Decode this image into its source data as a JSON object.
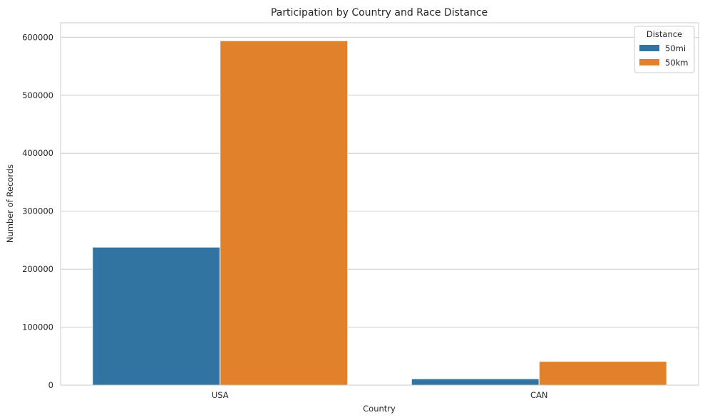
{
  "chart_data": {
    "type": "bar",
    "title": "Participation by Country and Race Distance",
    "xlabel": "Country",
    "ylabel": "Number of Records",
    "categories": [
      "USA",
      "CAN"
    ],
    "series": [
      {
        "name": "50mi",
        "values": [
          238000,
          11000
        ],
        "color": "#3274a1"
      },
      {
        "name": "50km",
        "values": [
          594000,
          41000
        ],
        "color": "#e1812c"
      }
    ],
    "ylim": [
      0,
      625000
    ],
    "yticks": [
      0,
      100000,
      200000,
      300000,
      400000,
      500000,
      600000
    ],
    "ytick_labels": [
      "0",
      "100000",
      "200000",
      "300000",
      "400000",
      "500000",
      "600000"
    ],
    "grid": true,
    "legend": {
      "title": "Distance",
      "position": "top-right"
    }
  }
}
